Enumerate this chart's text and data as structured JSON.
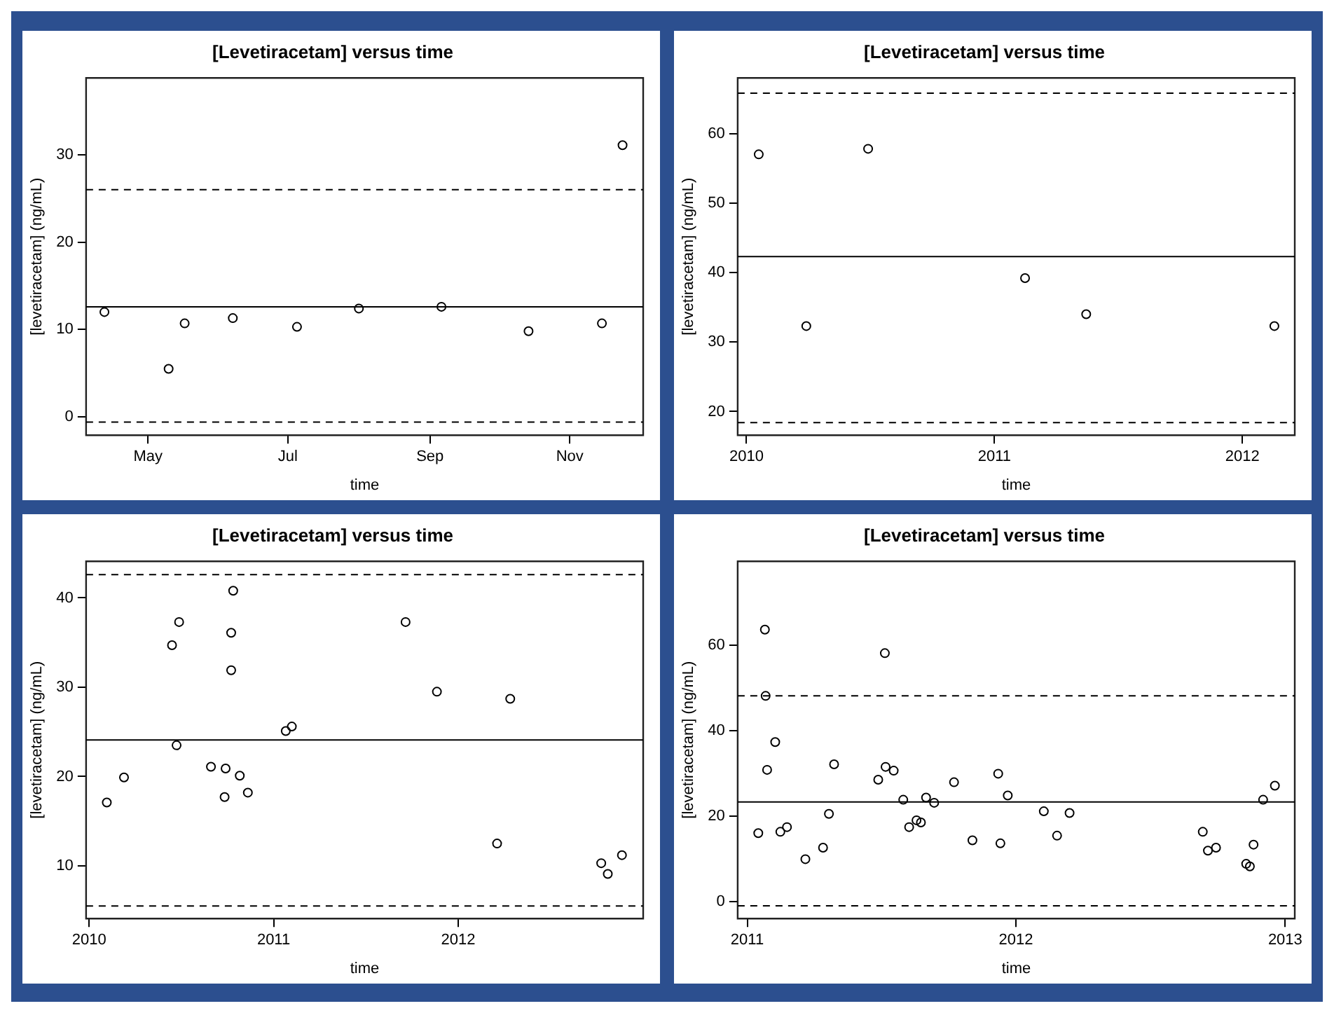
{
  "chart_data": [
    {
      "type": "scatter",
      "title": "[Levetiracetam] versus time",
      "xlabel": "time",
      "ylabel": "[levetiracetam] (ng/mL)",
      "color": "#000000",
      "marker": "circle",
      "x": [
        "--04-12",
        "--05-10",
        "--05-17",
        "--06-07",
        "--07-05",
        "--08-01",
        "--09-06",
        "--10-14",
        "--11-15",
        "--11-24"
      ],
      "values": [
        12.0,
        5.5,
        10.7,
        11.3,
        10.3,
        12.4,
        12.6,
        9.8,
        10.7,
        31.1
      ],
      "xlim": [
        "--04-04",
        "--12-03"
      ],
      "xticks": [
        {
          "value": "--05-01",
          "label": "May"
        },
        {
          "value": "--07-01",
          "label": "Jul"
        },
        {
          "value": "--09-01",
          "label": "Sep"
        },
        {
          "value": "--11-01",
          "label": "Nov"
        }
      ],
      "ylim": [
        -2.1,
        38.8
      ],
      "yticks": [
        0,
        10,
        20,
        30
      ],
      "ref_lines": [
        {
          "axis": "y",
          "value": 12.6,
          "line_style": "solid"
        },
        {
          "axis": "y",
          "value": 26.0,
          "line_style": "dashed"
        },
        {
          "axis": "y",
          "value": -0.6,
          "line_style": "dashed"
        }
      ]
    },
    {
      "type": "scatter",
      "title": "[Levetiracetam] versus time",
      "xlabel": "time",
      "ylabel": "[levetiracetam] (ng/mL)",
      "color": "#000000",
      "marker": "circle",
      "x": [
        "2010-01-19",
        "2010-03-30",
        "2010-06-29",
        "2011-02-15",
        "2011-05-16",
        "2012-02-17"
      ],
      "values": [
        57.0,
        32.3,
        57.8,
        39.2,
        34.0,
        32.3
      ],
      "xlim": [
        "2009-12-19",
        "2012-03-18"
      ],
      "xticks": [
        "2010",
        "2011",
        "2012"
      ],
      "ylim": [
        16.6,
        68.0
      ],
      "yticks": [
        20,
        30,
        40,
        50,
        60
      ],
      "ref_lines": [
        {
          "axis": "y",
          "value": 42.3,
          "line_style": "solid"
        },
        {
          "axis": "y",
          "value": 65.8,
          "line_style": "dashed"
        },
        {
          "axis": "y",
          "value": 18.4,
          "line_style": "dashed"
        }
      ]
    },
    {
      "type": "scatter",
      "title": "[Levetiracetam] versus time",
      "xlabel": "time",
      "ylabel": "[levetiracetam] (ng/mL)",
      "color": "#000000",
      "marker": "circle",
      "x": [
        "2010-02-05",
        "2010-03-11",
        "2010-06-14",
        "2010-06-28",
        "2010-06-23",
        "2010-08-30",
        "2010-09-26",
        "2010-09-28",
        "2010-10-09",
        "2010-10-09",
        "2010-10-13",
        "2010-10-26",
        "2010-11-11",
        "2011-01-25",
        "2011-02-06",
        "2011-09-19",
        "2011-11-20",
        "2012-03-18",
        "2012-04-13",
        "2012-10-10",
        "2012-10-23",
        "2012-11-20"
      ],
      "values": [
        17.1,
        19.9,
        34.7,
        37.3,
        23.5,
        21.1,
        17.7,
        20.9,
        36.1,
        31.9,
        40.8,
        20.1,
        18.2,
        25.1,
        25.6,
        37.3,
        29.5,
        12.5,
        28.7,
        10.3,
        9.1,
        11.2
      ],
      "xlim": [
        "2009-12-26",
        "2013-01-01"
      ],
      "xticks": [
        "2010",
        "2011",
        "2012"
      ],
      "ylim": [
        4.1,
        44.1
      ],
      "yticks": [
        10,
        20,
        30,
        40
      ],
      "ref_lines": [
        {
          "axis": "y",
          "value": 24.1,
          "line_style": "solid"
        },
        {
          "axis": "y",
          "value": 42.6,
          "line_style": "dashed"
        },
        {
          "axis": "y",
          "value": 5.5,
          "line_style": "dashed"
        }
      ]
    },
    {
      "type": "scatter",
      "title": "[Levetiracetam] versus time",
      "xlabel": "time",
      "ylabel": "[levetiracetam] (ng/mL)",
      "color": "#000000",
      "marker": "circle",
      "x": [
        "2011-01-16",
        "2011-01-25",
        "2011-01-26",
        "2011-01-28",
        "2011-02-08",
        "2011-02-15",
        "2011-02-24",
        "2011-03-21",
        "2011-04-14",
        "2011-04-22",
        "2011-04-29",
        "2011-06-28",
        "2011-07-07",
        "2011-07-08",
        "2011-07-19",
        "2011-08-01",
        "2011-08-09",
        "2011-08-19",
        "2011-08-25",
        "2011-09-01",
        "2011-09-12",
        "2011-10-09",
        "2011-11-03",
        "2011-12-08",
        "2011-12-11",
        "2011-12-21",
        "2012-02-08",
        "2012-02-26",
        "2012-03-14",
        "2012-09-11",
        "2012-09-18",
        "2012-09-29",
        "2012-11-09",
        "2012-11-14",
        "2012-11-19",
        "2012-12-02",
        "2012-12-18"
      ],
      "values": [
        16.0,
        63.6,
        48.1,
        30.8,
        37.3,
        16.3,
        17.4,
        9.9,
        12.6,
        20.5,
        32.1,
        28.5,
        58.1,
        31.5,
        30.6,
        23.8,
        17.4,
        19.0,
        18.5,
        24.3,
        23.1,
        27.9,
        14.3,
        29.9,
        13.6,
        24.8,
        21.1,
        15.4,
        20.7,
        16.3,
        11.9,
        12.6,
        8.8,
        8.2,
        13.3,
        23.8,
        27.1
      ],
      "xlim": [
        "2010-12-19",
        "2013-01-14"
      ],
      "xticks": [
        "2011",
        "2012",
        "2013"
      ],
      "ylim": [
        -4.0,
        79.6
      ],
      "yticks": [
        0,
        20,
        40,
        60
      ],
      "ref_lines": [
        {
          "axis": "y",
          "value": 23.3,
          "line_style": "solid"
        },
        {
          "axis": "y",
          "value": 48.1,
          "line_style": "dashed"
        },
        {
          "axis": "y",
          "value": -1.0,
          "line_style": "dashed"
        }
      ]
    }
  ]
}
